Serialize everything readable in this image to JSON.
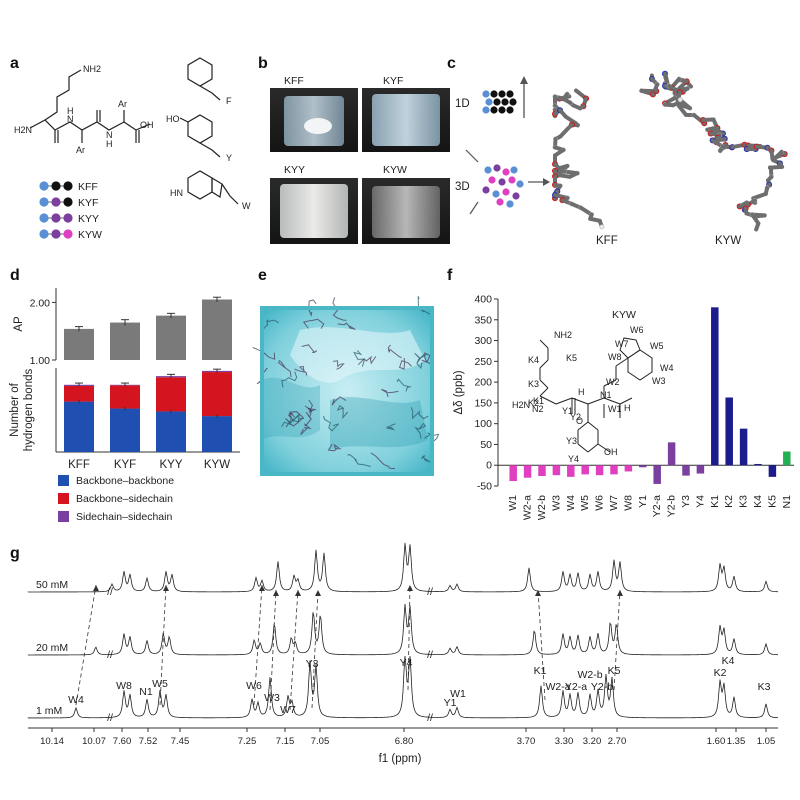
{
  "panel_labels": [
    "a",
    "b",
    "c",
    "d",
    "e",
    "f",
    "g"
  ],
  "panel_a": {
    "peptides": [
      {
        "name": "KFF",
        "colors": [
          "#5a8fd6",
          "#111111",
          "#111111"
        ]
      },
      {
        "name": "KYF",
        "colors": [
          "#5a8fd6",
          "#7b3fa0",
          "#111111"
        ]
      },
      {
        "name": "KYY",
        "colors": [
          "#5a8fd6",
          "#7b3fa0",
          "#7b3fa0"
        ]
      },
      {
        "name": "KYW",
        "colors": [
          "#5a8fd6",
          "#7b3fa0",
          "#e040c0"
        ]
      }
    ],
    "side_chain_labels": [
      "F",
      "Y",
      "W"
    ],
    "chem_text": {
      "nh2": "NH2",
      "h2n": "H2N",
      "ar1": "Ar",
      "ar2": "Ar",
      "oh": "OH",
      "nh_left": "N",
      "nh_right": "N",
      "h_left": "H",
      "h_right": "H",
      "ho": "HO",
      "hn": "HN"
    }
  },
  "panel_b": {
    "vial_labels": [
      "KFF",
      "KYF",
      "KYY",
      "KYW"
    ]
  },
  "panel_c": {
    "labels_1d": "1D",
    "labels_3d": "3D",
    "structures": [
      "KFF",
      "KYW"
    ]
  },
  "chart_data": [
    {
      "panel": "d-top",
      "type": "bar",
      "categories": [
        "KFF",
        "KYF",
        "KYY",
        "KYW"
      ],
      "ylabel": "AP",
      "yticks": [
        "1.00",
        "2.00"
      ],
      "ylim": [
        1.0,
        2.25
      ],
      "values": [
        1.54,
        1.65,
        1.77,
        2.05
      ],
      "errors": [
        0.04,
        0.05,
        0.04,
        0.04
      ],
      "color": "#7a7a7a"
    },
    {
      "panel": "d-bottom",
      "type": "bar",
      "stacked": true,
      "categories": [
        "KFF",
        "KYF",
        "KYY",
        "KYW"
      ],
      "ylabel_lines": [
        "Number of",
        "hydrogen bonds"
      ],
      "ylim": [
        0,
        145
      ],
      "series": [
        {
          "name": "Backbone–backbone",
          "color": "#1f4fb0",
          "values": [
            87,
            75,
            70,
            62
          ]
        },
        {
          "name": "Backbone–sidechain",
          "color": "#d4141e",
          "values": [
            27,
            40,
            59,
            76
          ]
        },
        {
          "name": "Sidechain–sidechain",
          "color": "#7b3fa0",
          "values": [
            2,
            1,
            2,
            2
          ]
        }
      ]
    },
    {
      "panel": "f",
      "type": "bar",
      "ylabel": "Δδ (ppb)",
      "ylim": [
        -50,
        400
      ],
      "yticks": [
        -50,
        0,
        50,
        100,
        150,
        200,
        250,
        300,
        350,
        400
      ],
      "categories": [
        "W1",
        "W2-a",
        "W2-b",
        "W3",
        "W4",
        "W5",
        "W6",
        "W7",
        "W8",
        "Y1",
        "Y2-a",
        "Y2-b",
        "Y3",
        "Y4",
        "K1",
        "K2",
        "K3",
        "K4",
        "K5",
        "N1"
      ],
      "values": [
        -38,
        -30,
        -26,
        -24,
        -28,
        -22,
        -24,
        -22,
        -15,
        -5,
        -45,
        55,
        -25,
        -20,
        380,
        163,
        88,
        3,
        -28,
        33
      ],
      "colors": [
        "#e040c0",
        "#e040c0",
        "#e040c0",
        "#e040c0",
        "#e040c0",
        "#e040c0",
        "#e040c0",
        "#e040c0",
        "#e040c0",
        "#7b3fa0",
        "#7b3fa0",
        "#7b3fa0",
        "#7b3fa0",
        "#7b3fa0",
        "#1c1c8c",
        "#1c1c8c",
        "#1c1c8c",
        "#1c1c8c",
        "#1c1c8c",
        "#22b050"
      ],
      "molecule_title": "KYW",
      "atom_labels": [
        {
          "t": "NH2",
          "c": "#222"
        },
        {
          "t": "K5",
          "c": "#1c1c8c"
        },
        {
          "t": "K4",
          "c": "#1c1c8c"
        },
        {
          "t": "K3",
          "c": "#1c1c8c"
        },
        {
          "t": "K2",
          "c": "#1c1c8c"
        },
        {
          "t": "K1",
          "c": "#1c1c8c"
        },
        {
          "t": "H2N",
          "c": "#222"
        },
        {
          "t": "N2",
          "c": "#22b050"
        },
        {
          "t": "Y1",
          "c": "#7b3fa0"
        },
        {
          "t": "N1",
          "c": "#22b050"
        },
        {
          "t": "W1",
          "c": "#e040c0"
        },
        {
          "t": "W2",
          "c": "#e040c0"
        },
        {
          "t": "W3",
          "c": "#e040c0"
        },
        {
          "t": "W4",
          "c": "#e040c0"
        },
        {
          "t": "W5",
          "c": "#e040c0"
        },
        {
          "t": "W6",
          "c": "#e040c0"
        },
        {
          "t": "W7",
          "c": "#e040c0"
        },
        {
          "t": "W8",
          "c": "#e040c0"
        },
        {
          "t": "Y2",
          "c": "#7b3fa0"
        },
        {
          "t": "Y3",
          "c": "#7b3fa0"
        },
        {
          "t": "Y4",
          "c": "#7b3fa0"
        },
        {
          "t": "OH",
          "c": "#222"
        },
        {
          "t": "H",
          "c": "#222"
        },
        {
          "t": "O",
          "c": "#222"
        },
        {
          "t": "H",
          "c": "#222"
        }
      ]
    },
    {
      "panel": "g",
      "type": "line",
      "xlabel": "f1 (ppm)",
      "traces": [
        "50 mM",
        "20 mM",
        "1 mM"
      ],
      "xtick_labels": [
        "10.14",
        "10.07",
        "7.60",
        "7.52",
        "7.45",
        "7.25",
        "7.15",
        "7.05",
        "6.80",
        "3.70",
        "3.30",
        "3.20",
        "2.70",
        "1.60",
        "1.35",
        "1.05"
      ],
      "peak_labels": [
        {
          "t": "W4",
          "c": "#e040c0"
        },
        {
          "t": "W8",
          "c": "#e040c0"
        },
        {
          "t": "N1",
          "c": "#22b050"
        },
        {
          "t": "W5",
          "c": "#e040c0"
        },
        {
          "t": "W6",
          "c": "#e040c0"
        },
        {
          "t": "W3",
          "c": "#e040c0"
        },
        {
          "t": "W7",
          "c": "#e040c0"
        },
        {
          "t": "Y3",
          "c": "#7b3fa0"
        },
        {
          "t": "Y4",
          "c": "#7b3fa0"
        },
        {
          "t": "Y1",
          "c": "#7b3fa0"
        },
        {
          "t": "W1",
          "c": "#e040c0"
        },
        {
          "t": "K1",
          "c": "#1c1c8c"
        },
        {
          "t": "W2-a",
          "c": "#e040c0"
        },
        {
          "t": "W2-b",
          "c": "#e040c0"
        },
        {
          "t": "Y2-a",
          "c": "#7b3fa0"
        },
        {
          "t": "Y2-b",
          "c": "#7b3fa0"
        },
        {
          "t": "K5",
          "c": "#1c1c8c"
        },
        {
          "t": "K2",
          "c": "#1c1c8c"
        },
        {
          "t": "K4",
          "c": "#1c1c8c"
        },
        {
          "t": "K3",
          "c": "#1c1c8c"
        }
      ]
    }
  ]
}
